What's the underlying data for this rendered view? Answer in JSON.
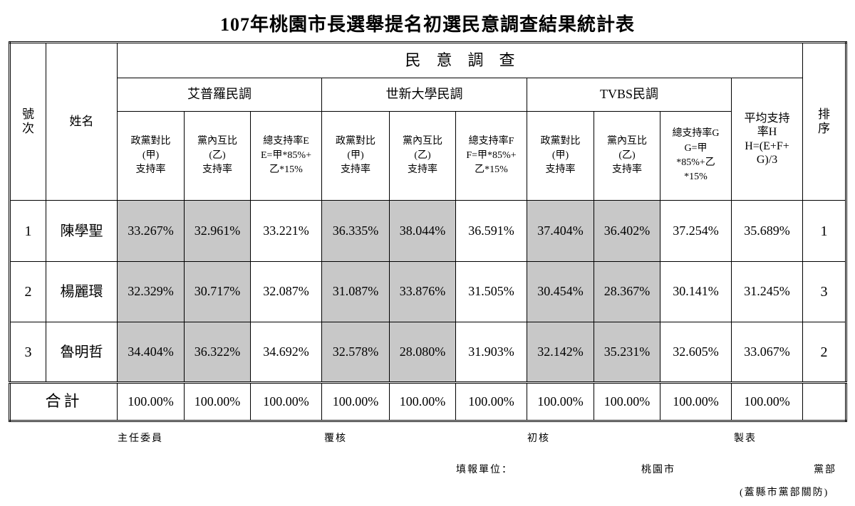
{
  "title": "107年桃園市長選舉提名初選民意調查結果統計表",
  "table": {
    "headers": {
      "number": "號\n次",
      "name": "姓名",
      "survey": "民　意　調　查",
      "groups": [
        "艾普羅民調",
        "世新大學民調",
        "TVBS民調"
      ],
      "average": "平均支持\n率H\nH=(E+F+\nG)/3",
      "rank": "排\n序",
      "columns": [
        "政黨對比\n(甲)\n支持率",
        "黨內互比\n(乙)\n支持率",
        "總支持率E\nE=甲*85%+\n乙*15%",
        "政黨對比\n(甲)\n支持率",
        "黨內互比\n(乙)\n支持率",
        "總支持率F\nF=甲*85%+\n乙*15%",
        "政黨對比\n(甲)\n支持率",
        "黨內互比\n(乙)\n支持率",
        "總支持率G\nG=甲\n*85%+乙\n*15%"
      ]
    },
    "rows": [
      [
        "1",
        "陳學聖",
        "33.267%",
        "32.961%",
        "33.221%",
        "36.335%",
        "38.044%",
        "36.591%",
        "37.404%",
        "36.402%",
        "37.254%",
        "35.689%",
        "1"
      ],
      [
        "2",
        "楊麗環",
        "32.329%",
        "30.717%",
        "32.087%",
        "31.087%",
        "33.876%",
        "31.505%",
        "30.454%",
        "28.367%",
        "30.141%",
        "31.245%",
        "3"
      ],
      [
        "3",
        "魯明哲",
        "34.404%",
        "36.322%",
        "34.692%",
        "32.578%",
        "28.080%",
        "31.903%",
        "32.142%",
        "35.231%",
        "32.605%",
        "33.067%",
        "2"
      ]
    ],
    "total": [
      "合計",
      "100.00%",
      "100.00%",
      "100.00%",
      "100.00%",
      "100.00%",
      "100.00%",
      "100.00%",
      "100.00%",
      "100.00%",
      "100.00%"
    ]
  },
  "footer": {
    "signatures": [
      "主任委員",
      "覆核",
      "初核",
      "製表"
    ],
    "unit_label": "填報單位：",
    "city": "桃園市",
    "party": "黨部",
    "stamp": "(蓋縣市黨部關防)"
  }
}
